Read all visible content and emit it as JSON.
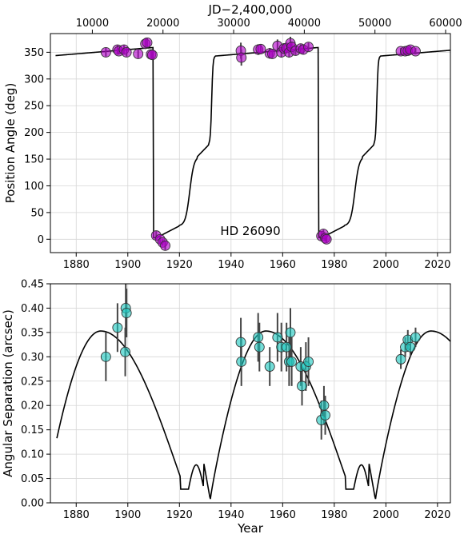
{
  "chart_data": [
    {
      "type": "scatter",
      "title": "",
      "xlabel": "",
      "ylabel": "Position Angle (deg)",
      "top_xlabel": "JD−2,400,000",
      "annotation": "HD 26090",
      "xlim": [
        1870,
        2025
      ],
      "ylim": [
        -25,
        385
      ],
      "x_ticks": [
        1880,
        1900,
        1920,
        1940,
        1960,
        1980,
        2000,
        2020
      ],
      "x_tick_labels": [
        "1880",
        "1900",
        "1920",
        "1940",
        "1960",
        "1980",
        "2000",
        "2020"
      ],
      "y_ticks": [
        0,
        50,
        100,
        150,
        200,
        250,
        300,
        350
      ],
      "y_tick_labels": [
        "0",
        "50",
        "100",
        "150",
        "200",
        "250",
        "300",
        "350"
      ],
      "top_ticks_jd": [
        10000,
        20000,
        30000,
        40000,
        50000,
        60000
      ],
      "top_tick_labels": [
        "10000",
        "20000",
        "30000",
        "40000",
        "50000",
        "60000"
      ],
      "grid": true,
      "marker_color": "#b000c8",
      "series": [
        {
          "name": "",
          "x": [
            1891.5,
            1896.0,
            1896.5,
            1898.5,
            1899.5,
            1904.0,
            1906.8,
            1907.5,
            1909.0,
            1909.5,
            1911.0,
            1912.5,
            1913.5,
            1914.5,
            1943.8,
            1944.0,
            1950.5,
            1951.5,
            1955.0,
            1956.0,
            1958.0,
            1959.5,
            1960.5,
            1961.5,
            1962.5,
            1963.0,
            1963.5,
            1965.0,
            1967.0,
            1968.0,
            1970.0,
            1975.0,
            1975.8,
            1976.5,
            1977.0,
            2005.8,
            2007.5,
            2008.5,
            2009.5,
            2011.5
          ],
          "y": [
            350,
            355,
            352,
            355,
            350,
            347,
            366,
            368,
            346,
            345,
            7,
            0,
            -6,
            -12,
            353,
            340,
            355,
            356,
            348,
            347,
            362,
            350,
            357,
            358,
            350,
            367,
            360,
            353,
            357,
            355,
            360,
            6,
            10,
            2,
            0,
            352,
            352,
            353,
            355,
            352
          ],
          "yerr": [
            8,
            8,
            6,
            8,
            8,
            8,
            10,
            8,
            8,
            6,
            8,
            8,
            6,
            8,
            15,
            15,
            10,
            8,
            10,
            8,
            12,
            10,
            10,
            10,
            10,
            12,
            10,
            8,
            8,
            8,
            8,
            8,
            8,
            6,
            6,
            6,
            6,
            6,
            6,
            6
          ]
        }
      ]
    },
    {
      "type": "scatter",
      "title": "",
      "xlabel": "Year",
      "ylabel": "Angular Separation (arcsec)",
      "xlim": [
        1870,
        2025
      ],
      "ylim": [
        0,
        0.45
      ],
      "x_ticks": [
        1880,
        1900,
        1920,
        1940,
        1960,
        1980,
        2000,
        2020
      ],
      "x_tick_labels": [
        "1880",
        "1900",
        "1920",
        "1940",
        "1960",
        "1980",
        "2000",
        "2020"
      ],
      "y_ticks": [
        0,
        0.05,
        0.1,
        0.15,
        0.2,
        0.25,
        0.3,
        0.35,
        0.4,
        0.45
      ],
      "y_tick_labels": [
        "0.00",
        "0.05",
        "0.10",
        "0.15",
        "0.20",
        "0.25",
        "0.30",
        "0.35",
        "0.40",
        "0.45"
      ],
      "grid": true,
      "marker_color": "#1ec8c0",
      "series": [
        {
          "name": "",
          "x": [
            1891.5,
            1896.0,
            1899.0,
            1899.2,
            1899.5,
            1943.8,
            1944.0,
            1950.5,
            1951.0,
            1955.0,
            1958.0,
            1959.5,
            1961.5,
            1962.5,
            1963.0,
            1963.5,
            1967.0,
            1967.5,
            1969.0,
            1970.0,
            1975.0,
            1976.0,
            1976.5,
            2005.8,
            2007.5,
            2008.5,
            2009.5,
            2011.5
          ],
          "y": [
            0.3,
            0.36,
            0.31,
            0.4,
            0.39,
            0.33,
            0.29,
            0.34,
            0.32,
            0.28,
            0.34,
            0.32,
            0.32,
            0.29,
            0.35,
            0.29,
            0.28,
            0.24,
            0.28,
            0.29,
            0.17,
            0.2,
            0.18,
            0.295,
            0.32,
            0.335,
            0.32,
            0.34
          ],
          "yerr": [
            0.05,
            0.05,
            0.05,
            0.05,
            0.05,
            0.05,
            0.05,
            0.05,
            0.05,
            0.04,
            0.05,
            0.05,
            0.05,
            0.05,
            0.05,
            0.05,
            0.04,
            0.04,
            0.05,
            0.05,
            0.04,
            0.04,
            0.04,
            0.02,
            0.02,
            0.02,
            0.02,
            0.02
          ]
        }
      ]
    }
  ]
}
